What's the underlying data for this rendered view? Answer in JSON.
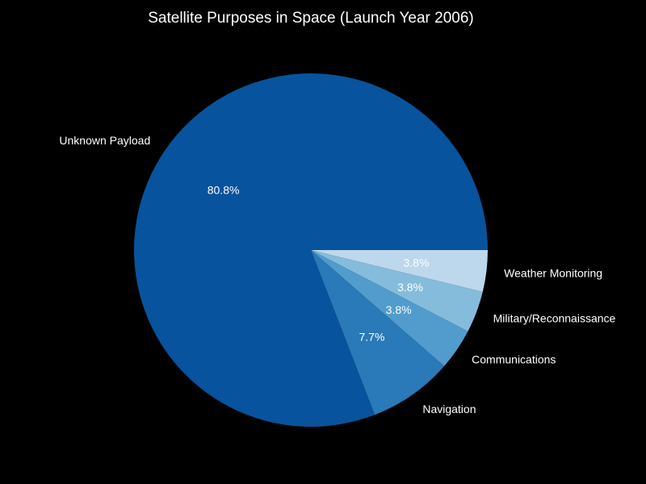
{
  "chart_data": {
    "type": "pie",
    "title": "Satellite Purposes in Space (Launch Year 2006)",
    "start_angle_deg": 0,
    "direction": "clockwise",
    "slices": [
      {
        "label": "Weather Monitoring",
        "value": 3.8,
        "pct_label": "3.8%",
        "color": "#bdd7ec"
      },
      {
        "label": "Military/Reconnaissance",
        "value": 3.8,
        "pct_label": "3.8%",
        "color": "#85bcdc"
      },
      {
        "label": "Communications",
        "value": 3.8,
        "pct_label": "3.8%",
        "color": "#519ccc"
      },
      {
        "label": "Navigation",
        "value": 7.7,
        "pct_label": "7.7%",
        "color": "#2a79b8"
      },
      {
        "label": "Unknown Payload",
        "value": 80.8,
        "pct_label": "80.8%",
        "color": "#08539d"
      }
    ]
  }
}
